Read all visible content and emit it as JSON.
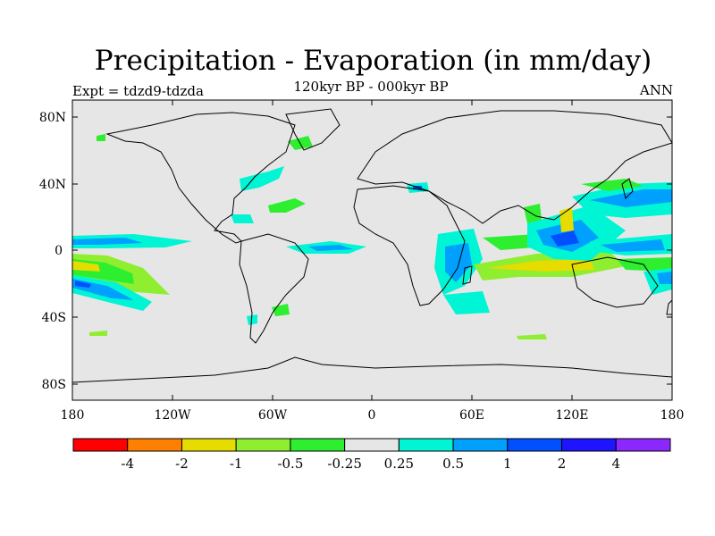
{
  "title": "Precipitation - Evaporation (in mm/day)",
  "subtitle": "120kyr BP - 000kyr BP",
  "experiment": "Expt = tdzd9-tdzda",
  "season": "ANN",
  "lat_ticks": [
    "80N",
    "40N",
    "0",
    "40S",
    "80S"
  ],
  "lon_ticks": [
    "180",
    "120W",
    "60W",
    "0",
    "60E",
    "120E",
    "180"
  ],
  "colorbar": {
    "colors": [
      "#ff0000",
      "#ff8000",
      "#e6dc00",
      "#90ee30",
      "#2eee30",
      "#e6e6e6",
      "#00f5d4",
      "#00a0ff",
      "#0050ff",
      "#1e14ff",
      "#8c28ff"
    ],
    "labels": [
      "-4",
      "-2",
      "-1",
      "-0.5",
      "-0.25",
      "0.25",
      "0.5",
      "1",
      "2",
      "4"
    ]
  },
  "colors": {
    "ocean": "#e6e6e6",
    "green": "#2eee30",
    "lightgreen": "#90ee30",
    "yellow": "#e6dc00",
    "cyan": "#00f5d4",
    "lightblue": "#00a0ff",
    "blue": "#0050ff"
  },
  "chart_data": {
    "type": "heatmap",
    "title": "Precipitation - Evaporation (in mm/day)",
    "subtitle": "120kyr BP - 000kyr BP",
    "projection": "cylindrical-equidistant",
    "lon_range": [
      -180,
      180
    ],
    "lat_range": [
      -90,
      90
    ],
    "contour_levels": [
      -4,
      -2,
      -1,
      -0.5,
      -0.25,
      0.25,
      0.5,
      1,
      2,
      4
    ],
    "units": "mm/day"
  }
}
